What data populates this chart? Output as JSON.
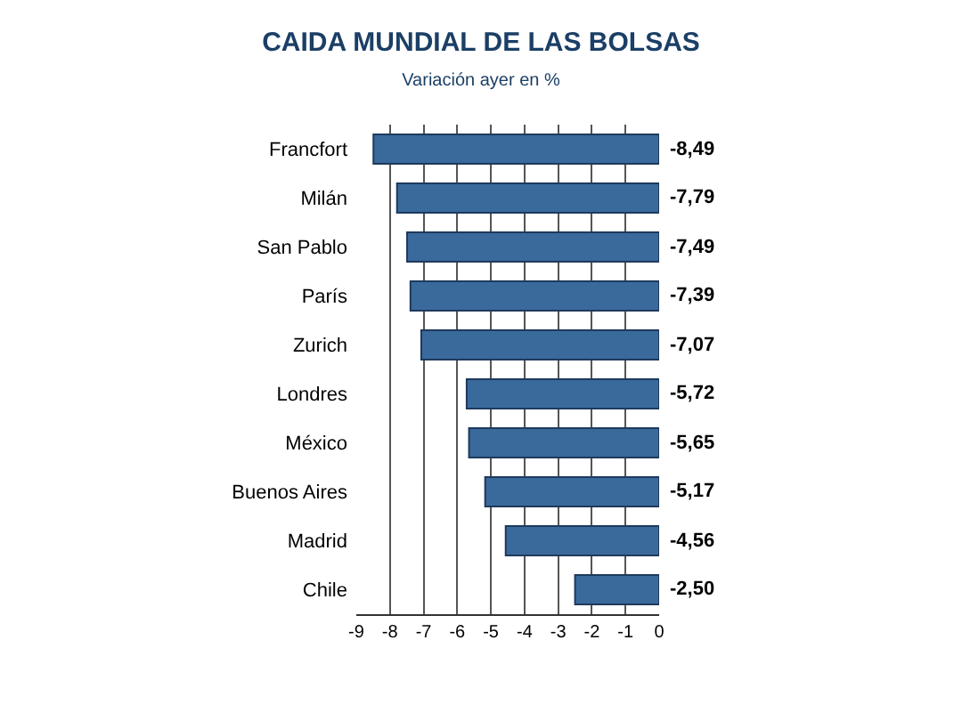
{
  "chart_data": {
    "type": "bar",
    "orientation": "horizontal",
    "title": "CAIDA MUNDIAL DE LAS BOLSAS",
    "subtitle": "Variación ayer en %",
    "categories": [
      "Francfort",
      "Milán",
      "San Pablo",
      "París",
      "Zurich",
      "Londres",
      "México",
      "Buenos Aires",
      "Madrid",
      "Chile"
    ],
    "values": [
      -8.49,
      -7.79,
      -7.49,
      -7.39,
      -7.07,
      -5.72,
      -5.65,
      -5.17,
      -4.56,
      -2.5
    ],
    "value_labels": [
      "-8,49",
      "-7,79",
      "-7,49",
      "-7,39",
      "-7,07",
      "-5,72",
      "-5,65",
      "-5,17",
      "-4,56",
      "-2,50"
    ],
    "color": "#3a6a9c",
    "xlim": [
      -9,
      0
    ],
    "xticks": [
      -9,
      -8,
      -7,
      -6,
      -5,
      -4,
      -3,
      -2,
      -1,
      0
    ],
    "grid": "x",
    "legend": false
  }
}
